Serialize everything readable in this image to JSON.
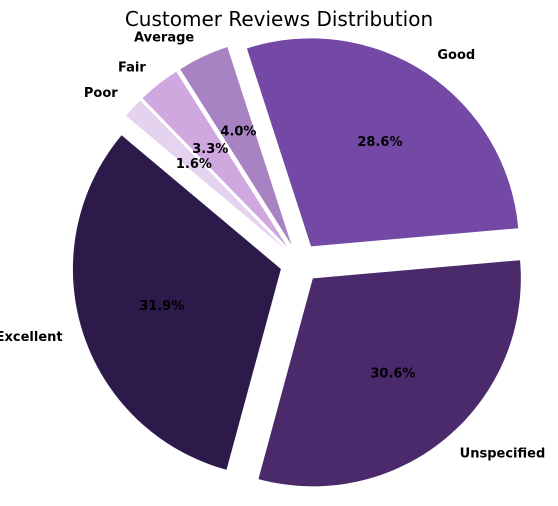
{
  "chart_data": {
    "type": "pie",
    "title": "Customer Reviews Distribution",
    "categories": [
      "Excellent",
      "Unspecified",
      "Good",
      "Average",
      "Fair",
      "Poor"
    ],
    "values": [
      31.9,
      30.6,
      28.6,
      4.0,
      3.3,
      1.6
    ],
    "labels": [
      "31.9%",
      "30.6%",
      "28.6%",
      "4.0%",
      "3.3%",
      "1.6%"
    ],
    "colors": [
      "#2b1a4a",
      "#4a2a6b",
      "#7349a5",
      "#a883c4",
      "#cfa8e0",
      "#e5d2ef"
    ],
    "legend": "none",
    "start_angle_deg": 140,
    "direction": "counterclockwise"
  }
}
